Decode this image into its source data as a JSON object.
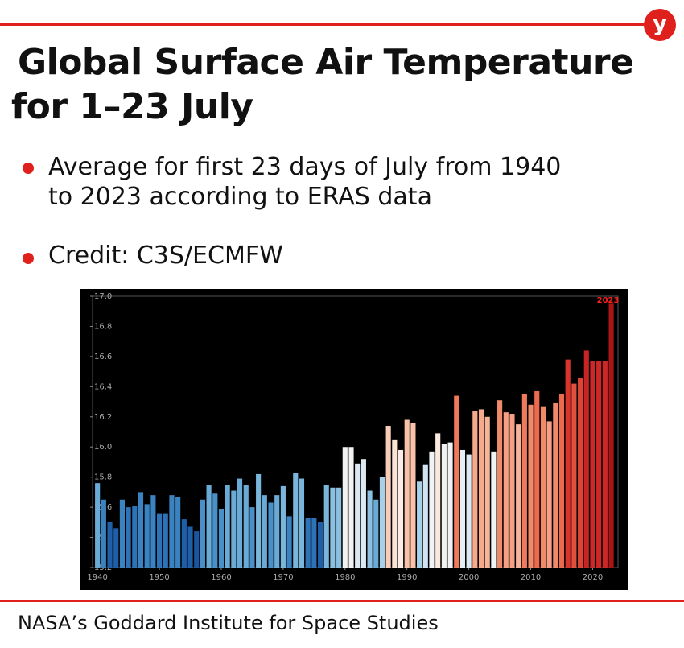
{
  "chart_data": {
    "type": "bar",
    "logo": "y",
    "title": "Global Surface Air Temperature for 1–23 July",
    "annotations": [
      "Average for first 23 days of July from 1940 to 2023 according to ERAS data",
      "Credit: C3S/ECMFW"
    ],
    "source": "NASA’s Goddard Institute for Space Studies",
    "highlight": "2023",
    "x": [
      1940,
      1941,
      1942,
      1943,
      1944,
      1945,
      1946,
      1947,
      1948,
      1949,
      1950,
      1951,
      1952,
      1953,
      1954,
      1955,
      1956,
      1957,
      1958,
      1959,
      1960,
      1961,
      1962,
      1963,
      1964,
      1965,
      1966,
      1967,
      1968,
      1969,
      1970,
      1971,
      1972,
      1973,
      1974,
      1975,
      1976,
      1977,
      1978,
      1979,
      1980,
      1981,
      1982,
      1983,
      1984,
      1985,
      1986,
      1987,
      1988,
      1989,
      1990,
      1991,
      1992,
      1993,
      1994,
      1995,
      1996,
      1997,
      1998,
      1999,
      2000,
      2001,
      2002,
      2003,
      2004,
      2005,
      2006,
      2007,
      2008,
      2009,
      2010,
      2011,
      2012,
      2013,
      2014,
      2015,
      2016,
      2017,
      2018,
      2019,
      2020,
      2021,
      2022,
      2023
    ],
    "values": [
      15.76,
      15.65,
      15.5,
      15.46,
      15.65,
      15.6,
      15.61,
      15.7,
      15.62,
      15.68,
      15.56,
      15.56,
      15.68,
      15.67,
      15.52,
      15.47,
      15.44,
      15.65,
      15.75,
      15.69,
      15.59,
      15.75,
      15.71,
      15.79,
      15.75,
      15.6,
      15.82,
      15.68,
      15.63,
      15.68,
      15.74,
      15.54,
      15.83,
      15.79,
      15.53,
      15.53,
      15.5,
      15.75,
      15.73,
      15.73,
      16.0,
      16.0,
      15.89,
      15.92,
      15.71,
      15.65,
      15.8,
      16.14,
      16.05,
      15.98,
      16.18,
      16.16,
      15.77,
      15.88,
      15.97,
      16.09,
      16.02,
      16.03,
      16.34,
      15.98,
      15.95,
      16.24,
      16.25,
      16.2,
      15.97,
      16.31,
      16.23,
      16.22,
      16.15,
      16.35,
      16.28,
      16.37,
      16.27,
      16.17,
      16.29,
      16.35,
      16.58,
      16.42,
      16.46,
      16.64,
      16.57,
      16.57,
      16.57,
      16.95
    ],
    "colors": [
      "#6aaad6",
      "#3b82c0",
      "#1f5fa8",
      "#1f5fa8",
      "#3b82c0",
      "#2e73b8",
      "#2e73b8",
      "#3b82c0",
      "#3b82c0",
      "#3b82c0",
      "#2e73b8",
      "#2e73b8",
      "#3b82c0",
      "#3b82c0",
      "#1f5fa8",
      "#1f5fa8",
      "#1a55a0",
      "#4a90c8",
      "#6aaad6",
      "#4a90c8",
      "#4a90c8",
      "#6aaad6",
      "#6aaad6",
      "#6aaad6",
      "#6aaad6",
      "#4a90c8",
      "#7ab6dc",
      "#6aaad6",
      "#4a90c8",
      "#6aaad6",
      "#7ab6dc",
      "#3b82c0",
      "#7ab6dc",
      "#7ab6dc",
      "#2e73b8",
      "#2e73b8",
      "#1f5fa8",
      "#7ab6dc",
      "#8cc0e0",
      "#8cc0e0",
      "#f2f2f2",
      "#f2f2f2",
      "#dce9f2",
      "#dce9f2",
      "#8cc0e0",
      "#6aaad6",
      "#a8d0e8",
      "#f8cdb8",
      "#fbe3d6",
      "#fbeee8",
      "#f8c2a8",
      "#f8c2a8",
      "#a8d0e8",
      "#cfe3f0",
      "#eef3f6",
      "#fbe8de",
      "#f2f2f2",
      "#f2f2f2",
      "#f07a5a",
      "#e6eef4",
      "#dce9f2",
      "#f5aa8c",
      "#f5aa8c",
      "#f5b59a",
      "#eef3f6",
      "#f08a6a",
      "#f5a084",
      "#f5a084",
      "#f5b59a",
      "#ef7a5c",
      "#f08a6a",
      "#ec6a4e",
      "#f08a6a",
      "#f5a084",
      "#f08a6a",
      "#ec6a4e",
      "#d8342c",
      "#e0503c",
      "#dc4434",
      "#c82424",
      "#cc2828",
      "#cc2828",
      "#cc2828",
      "#a81418"
    ],
    "highlight_color": "#ff2020",
    "xlim": [
      1939.2,
      2024.1
    ],
    "xticks": [
      1940,
      1950,
      1960,
      1970,
      1980,
      1990,
      2000,
      2010,
      2020
    ],
    "ylim": [
      15.2,
      17.0
    ],
    "yticks": [
      15.2,
      15.4,
      15.6,
      15.8,
      {
        "value": 16,
        "label": "16.0"
      },
      16.2,
      16.4,
      16.6,
      16.8,
      {
        "value": 17,
        "label": "17.0"
      }
    ]
  }
}
